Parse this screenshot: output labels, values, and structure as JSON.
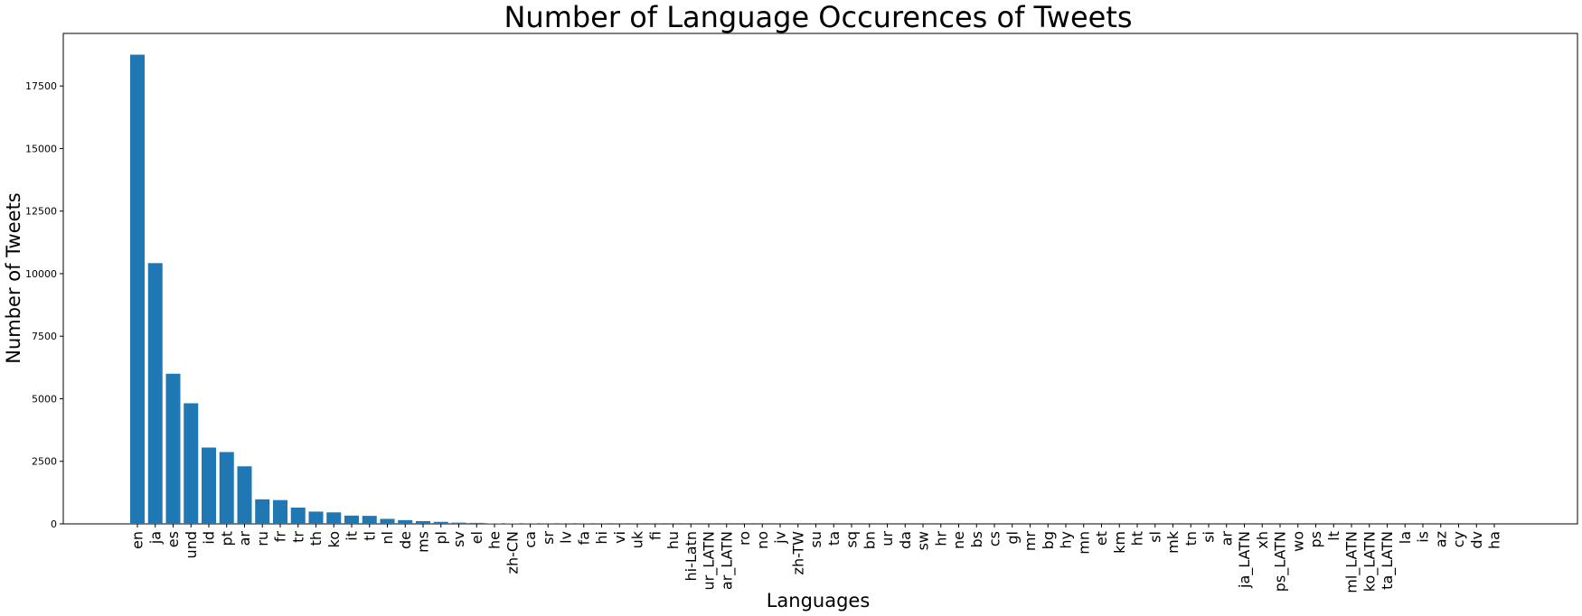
{
  "chart_data": {
    "type": "bar",
    "title": "Number of Language Occurences of Tweets",
    "xlabel": "Languages",
    "ylabel": "Number of Tweets",
    "ylim": [
      0,
      19600
    ],
    "yticks": [
      0,
      2500,
      5000,
      7500,
      10000,
      12500,
      15000,
      17500
    ],
    "grid": false,
    "color": "#1f77b4",
    "categories": [
      "en",
      "ja",
      "es",
      "und",
      "id",
      "pt",
      "ar",
      "ru",
      "fr",
      "tr",
      "th",
      "ko",
      "it",
      "tl",
      "nl",
      "de",
      "ms",
      "pl",
      "sv",
      "el",
      "he",
      "zh-CN",
      "ca",
      "sr",
      "lv",
      "fa",
      "hi",
      "vi",
      "uk",
      "fi",
      "hu",
      "hi-Latn",
      "ur_LATN",
      "ar_LATN",
      "ro",
      "no",
      "jv",
      "zh-TW",
      "su",
      "ta",
      "sq",
      "bn",
      "ur",
      "da",
      "sw",
      "hr",
      "ne",
      "bs",
      "cs",
      "gl",
      "mr",
      "bg",
      "hy",
      "mn",
      "et",
      "km",
      "ht",
      "sl",
      "mk",
      "tn",
      "si",
      "ar",
      "ja_LATN",
      "xh",
      "ps_LATN",
      "wo",
      "ps",
      "lt",
      "ml_LATN",
      "ko_LATN",
      "ta_LATN",
      "la",
      "is",
      "az",
      "cy",
      "dv",
      "ha"
    ],
    "values": [
      18750,
      10420,
      6000,
      4820,
      3050,
      2870,
      2300,
      980,
      950,
      650,
      490,
      460,
      330,
      320,
      200,
      150,
      110,
      80,
      50,
      40,
      20,
      15,
      12,
      10,
      9,
      8,
      7,
      6,
      5,
      5,
      4,
      4,
      3,
      3,
      3,
      3,
      2,
      2,
      2,
      2,
      2,
      2,
      2,
      2,
      2,
      1,
      1,
      1,
      1,
      1,
      1,
      1,
      1,
      1,
      1,
      1,
      1,
      1,
      1,
      1,
      1,
      1,
      1,
      1,
      1,
      1,
      1,
      1,
      1,
      1,
      1,
      1,
      1,
      1,
      1,
      1,
      1
    ]
  }
}
